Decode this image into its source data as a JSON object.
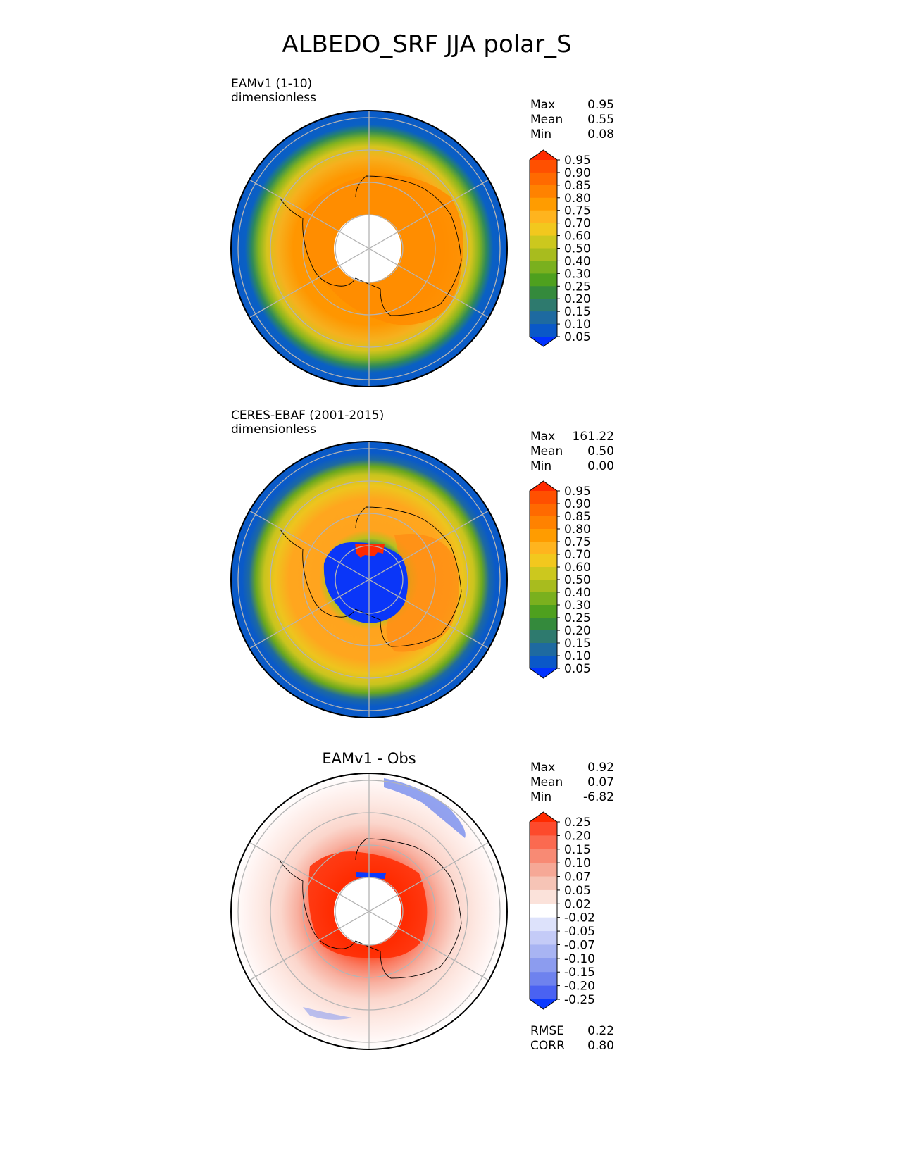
{
  "title": "ALBEDO_SRF JJA polar_S",
  "chart_data": [
    {
      "type": "heatmap",
      "projection": "south-polar-stereographic",
      "title_left": "EAMv1 (1-10)",
      "units": "dimensionless",
      "stats": [
        {
          "label": "Max",
          "value": "0.95"
        },
        {
          "label": "Mean",
          "value": "0.55"
        },
        {
          "label": "Min",
          "value": "0.08"
        }
      ],
      "colorbar": {
        "extend": "both",
        "levels": [
          "0.95",
          "0.90",
          "0.85",
          "0.80",
          "0.75",
          "0.70",
          "0.60",
          "0.50",
          "0.40",
          "0.30",
          "0.25",
          "0.20",
          "0.15",
          "0.10",
          "0.05"
        ],
        "colors": [
          "#ff2a00",
          "#ff5000",
          "#ff6a00",
          "#ff8200",
          "#ff9c00",
          "#ffb41e",
          "#f2c81e",
          "#ccc81e",
          "#a8bc1e",
          "#7ab01e",
          "#4ea01e",
          "#348a3c",
          "#2e7a6e",
          "#1e6aa0",
          "#0a58c8",
          "#0032ff"
        ],
        "max_label": "0.95",
        "min_label": "0.05"
      },
      "field_summary": {
        "inner_gap_radius_deg": 5,
        "ice_color": "#ff9900",
        "margin_color": "#e8c41e",
        "ocean_color": "#0a5fc8"
      }
    },
    {
      "type": "heatmap",
      "projection": "south-polar-stereographic",
      "title_left": "CERES-EBAF (2001-2015)",
      "units": "dimensionless",
      "stats": [
        {
          "label": "Max",
          "value": "161.22"
        },
        {
          "label": "Mean",
          "value": "0.50"
        },
        {
          "label": "Min",
          "value": "0.00"
        }
      ],
      "colorbar": {
        "extend": "both",
        "levels": [
          "0.95",
          "0.90",
          "0.85",
          "0.80",
          "0.75",
          "0.70",
          "0.60",
          "0.50",
          "0.40",
          "0.30",
          "0.25",
          "0.20",
          "0.15",
          "0.10",
          "0.05"
        ],
        "colors": [
          "#ff2a00",
          "#ff5000",
          "#ff6a00",
          "#ff8200",
          "#ff9c00",
          "#ffb41e",
          "#f2c81e",
          "#ccc81e",
          "#a8bc1e",
          "#7ab01e",
          "#4ea01e",
          "#348a3c",
          "#2e7a6e",
          "#1e6aa0",
          "#0a58c8",
          "#0032ff"
        ]
      },
      "field_summary": {
        "polar_night_color": "#0032ff",
        "ice_color": "#ffa01e",
        "margin_color": "#e8c41e",
        "ocean_color": "#0a5fc8"
      }
    },
    {
      "type": "heatmap",
      "projection": "south-polar-stereographic",
      "title_center": "EAMv1 - Obs",
      "stats": [
        {
          "label": "Max",
          "value": "0.92"
        },
        {
          "label": "Mean",
          "value": "0.07"
        },
        {
          "label": "Min",
          "value": "-6.82"
        }
      ],
      "metrics": [
        {
          "label": "RMSE",
          "value": "0.22"
        },
        {
          "label": "CORR",
          "value": "0.80"
        }
      ],
      "colorbar": {
        "extend": "both",
        "levels": [
          "0.25",
          "0.20",
          "0.15",
          "0.10",
          "0.07",
          "0.05",
          "0.02",
          "-0.02",
          "-0.05",
          "-0.07",
          "-0.10",
          "-0.15",
          "-0.20",
          "-0.25"
        ],
        "colors": [
          "#ff2a00",
          "#fd4a2c",
          "#fb6a50",
          "#f88a74",
          "#f6a896",
          "#f6c4b6",
          "#fbe2da",
          "#ffffff",
          "#dde2fb",
          "#c4cbf7",
          "#a8b4f3",
          "#8c9cef",
          "#6e82ee",
          "#4a62f2",
          "#0b3aff"
        ]
      }
    }
  ]
}
